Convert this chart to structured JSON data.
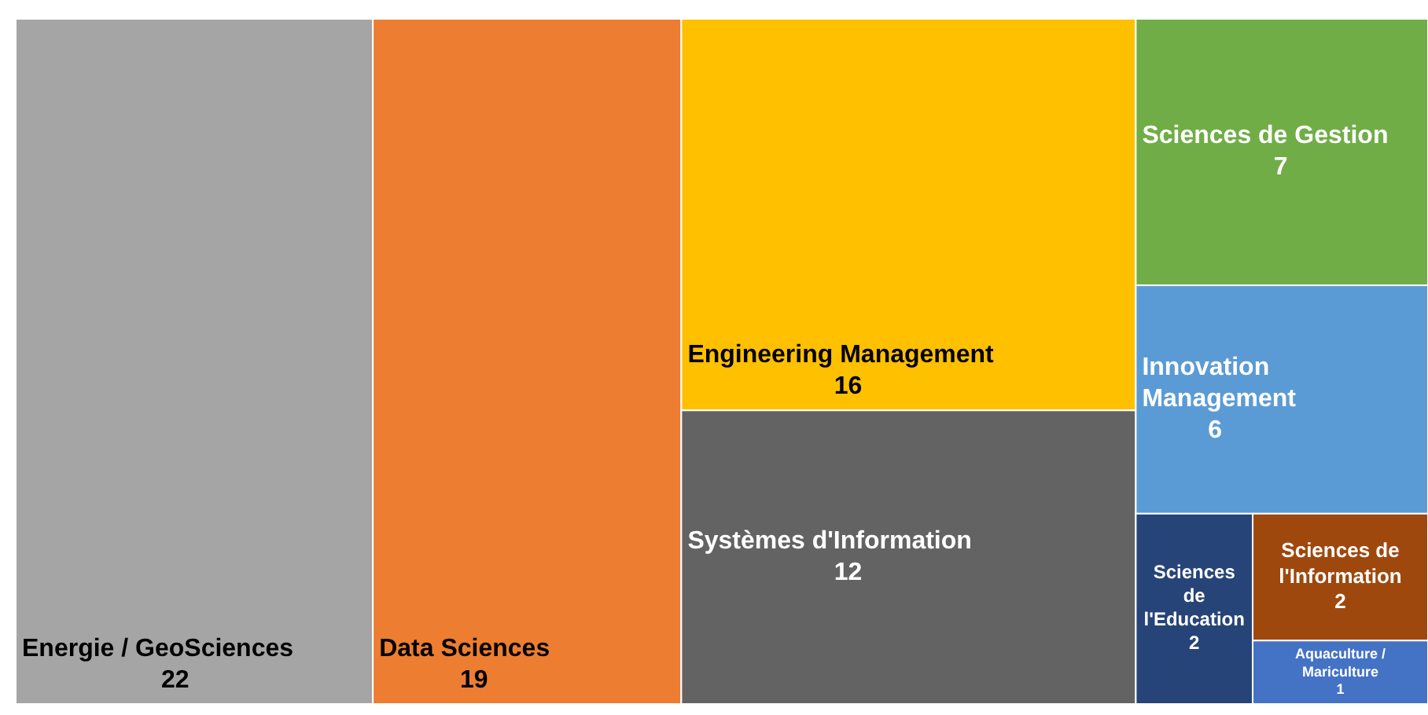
{
  "chart_data": {
    "type": "other",
    "categories": [
      "Energie / GeoSciences",
      "Data Sciences",
      "Engineering Management",
      "Systèmes d'Information",
      "Sciences de Gestion",
      "Innovation Management",
      "Sciences de l'Education",
      "Sciences de l'Information",
      "Aquaculture / Mariculture"
    ],
    "values": [
      22,
      19,
      16,
      12,
      7,
      6,
      2,
      2,
      1
    ],
    "colors": [
      "#a5a5a5",
      "#ed7d31",
      "#ffc000",
      "#636363",
      "#70ad47",
      "#5b9bd5",
      "#264478",
      "#9e480e",
      "#4472c4"
    ],
    "data_labels": true
  }
}
